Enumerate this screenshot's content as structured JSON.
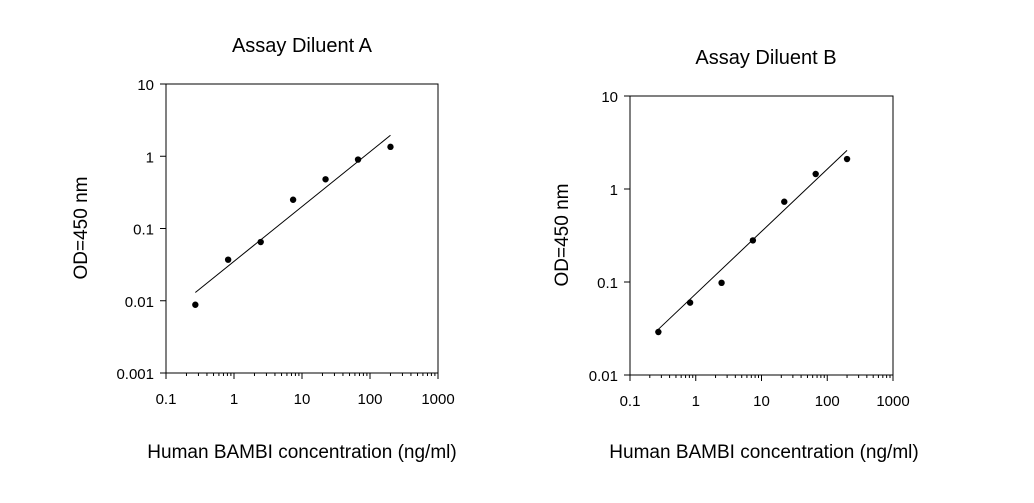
{
  "chart_data": [
    {
      "type": "scatter",
      "title": "Assay Diluent A",
      "xlabel": "Human BAMBI concentration (ng/ml)",
      "ylabel": "OD=450 nm",
      "xscale": "log",
      "yscale": "log",
      "xlim": [
        0.1,
        1000
      ],
      "ylim": [
        0.001,
        10
      ],
      "xticks": [
        "0.1",
        "1",
        "10",
        "100",
        "1000"
      ],
      "yticks": [
        "0.001",
        "0.01",
        "0.1",
        "1",
        "10"
      ],
      "grid": false,
      "legend": "none",
      "points": [
        {
          "x": 0.27,
          "y": 0.0088
        },
        {
          "x": 0.82,
          "y": 0.037
        },
        {
          "x": 2.47,
          "y": 0.065
        },
        {
          "x": 7.4,
          "y": 0.25
        },
        {
          "x": 22.2,
          "y": 0.48
        },
        {
          "x": 66.7,
          "y": 0.9
        },
        {
          "x": 200,
          "y": 1.35
        }
      ],
      "fit_line": [
        {
          "x": 0.27,
          "y": 0.013
        },
        {
          "x": 200,
          "y": 1.95
        }
      ]
    },
    {
      "type": "scatter",
      "title": "Assay Diluent B",
      "xlabel": "Human BAMBI concentration (ng/ml)",
      "ylabel": "OD=450 nm",
      "xscale": "log",
      "yscale": "log",
      "xlim": [
        0.1,
        1000
      ],
      "ylim": [
        0.01,
        10
      ],
      "xticks": [
        "0.1",
        "1",
        "10",
        "100",
        "1000"
      ],
      "yticks": [
        "0.01",
        "0.1",
        "1",
        "10"
      ],
      "grid": false,
      "legend": "none",
      "points": [
        {
          "x": 0.27,
          "y": 0.029
        },
        {
          "x": 0.82,
          "y": 0.06
        },
        {
          "x": 2.47,
          "y": 0.098
        },
        {
          "x": 7.4,
          "y": 0.28
        },
        {
          "x": 22.2,
          "y": 0.73
        },
        {
          "x": 66.7,
          "y": 1.45
        },
        {
          "x": 200,
          "y": 2.1
        }
      ],
      "fit_line": [
        {
          "x": 0.27,
          "y": 0.031
        },
        {
          "x": 200,
          "y": 2.6
        }
      ]
    }
  ]
}
